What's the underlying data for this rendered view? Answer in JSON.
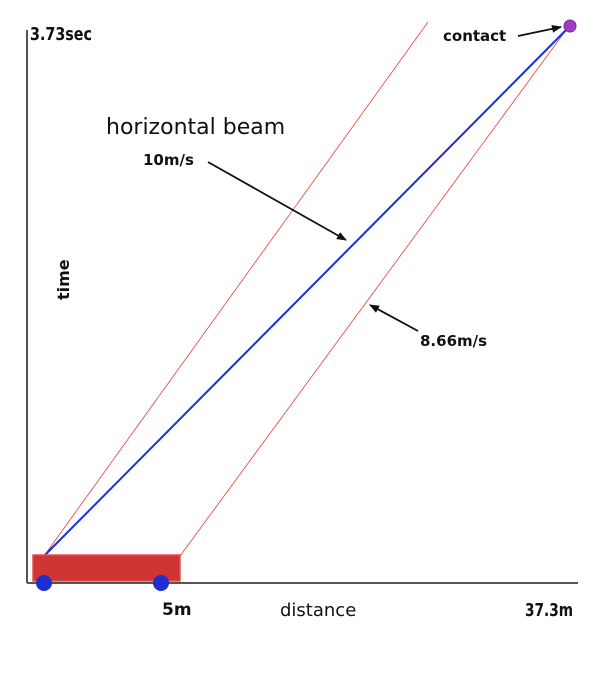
{
  "labels": {
    "time_max": "3.73sec",
    "distance_max": "37.3m",
    "car_length": "5m",
    "x_axis": "distance",
    "y_axis": "time",
    "event": "contact",
    "beam": "horizontal beam",
    "beam_speed": "10m/s",
    "car_speed": "8.66m/s"
  },
  "colors": {
    "axes": "#555555",
    "beam_line": "#1a2fd6",
    "car_lines": "#e84030",
    "car_body": "#d03535",
    "car_outline": "#e05050",
    "wheels": "#1d2fd0",
    "contact_point": "#9b3fc0",
    "arrows": "#111111"
  }
}
